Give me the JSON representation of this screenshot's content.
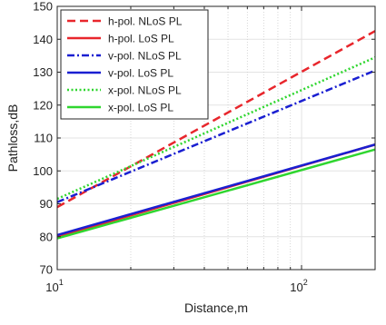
{
  "chart_data": {
    "type": "line",
    "xlabel": "Distance,m",
    "ylabel": "Pathloss,dB",
    "xscale": "log",
    "xlim": [
      10,
      200
    ],
    "ylim": [
      70,
      150
    ],
    "grid": true,
    "legend": "top-left",
    "x_ticks": [
      10,
      100
    ],
    "x_tick_labels": [
      {
        "base": "10",
        "exp": "1"
      },
      {
        "base": "10",
        "exp": "2"
      }
    ],
    "y_ticks": [
      70,
      80,
      90,
      100,
      110,
      120,
      130,
      140,
      150
    ],
    "x": [
      10,
      200
    ],
    "series": [
      {
        "name": "h-pol. NLoS PL",
        "color": "#e8262c",
        "dash": "dashed",
        "values": [
          89,
          142.5
        ]
      },
      {
        "name": "h-pol. LoS PL",
        "color": "#e8262c",
        "dash": "solid",
        "values": [
          80,
          108
        ]
      },
      {
        "name": "v-pol. NLoS PL",
        "color": "#1a1fd1",
        "dash": "dashdot",
        "values": [
          90.5,
          130.5
        ]
      },
      {
        "name": "v-pol. LoS PL",
        "color": "#1a1fd1",
        "dash": "solid",
        "values": [
          80.5,
          108
        ]
      },
      {
        "name": "x-pol. NLoS PL",
        "color": "#2fd62f",
        "dash": "dotted",
        "values": [
          91.5,
          134.5
        ]
      },
      {
        "name": "x-pol. LoS PL",
        "color": "#2fd62f",
        "dash": "solid",
        "values": [
          79.5,
          106.5
        ]
      }
    ]
  }
}
